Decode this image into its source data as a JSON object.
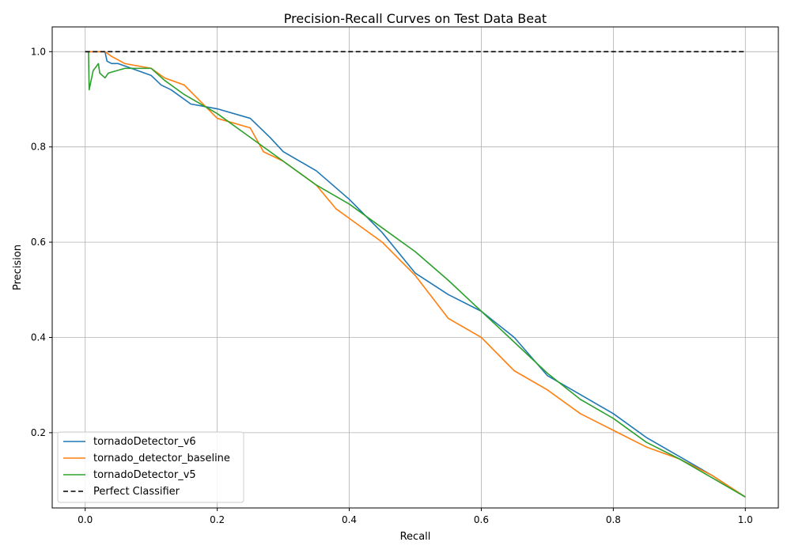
{
  "chart_data": {
    "type": "line",
    "title": "Precision-Recall Curves on Test Data Beat",
    "xlabel": "Recall",
    "ylabel": "Precision",
    "xlim": [
      -0.05,
      1.05
    ],
    "ylim": [
      0.042,
      1.052
    ],
    "xticks": [
      0.0,
      0.2,
      0.4,
      0.6,
      0.8,
      1.0
    ],
    "yticks": [
      0.2,
      0.4,
      0.6,
      0.8,
      1.0
    ],
    "xtick_labels": [
      "0.0",
      "0.2",
      "0.4",
      "0.6",
      "0.8",
      "1.0"
    ],
    "ytick_labels": [
      "0.2",
      "0.4",
      "0.6",
      "0.8",
      "1.0"
    ],
    "grid": true,
    "legend_position": "lower-left",
    "series": [
      {
        "name": "tornadoDetector_v6",
        "color": "#1f77b4",
        "dash": "solid",
        "x": [
          0.0,
          0.03,
          0.033,
          0.04,
          0.05,
          0.08,
          0.1,
          0.115,
          0.13,
          0.16,
          0.2,
          0.25,
          0.28,
          0.3,
          0.35,
          0.4,
          0.45,
          0.5,
          0.55,
          0.6,
          0.65,
          0.7,
          0.75,
          0.8,
          0.85,
          0.9,
          0.95,
          1.0
        ],
        "y": [
          1.0,
          1.0,
          0.98,
          0.975,
          0.975,
          0.96,
          0.95,
          0.93,
          0.92,
          0.89,
          0.88,
          0.86,
          0.82,
          0.79,
          0.75,
          0.69,
          0.62,
          0.535,
          0.49,
          0.455,
          0.4,
          0.32,
          0.28,
          0.24,
          0.19,
          0.15,
          0.11,
          0.065
        ]
      },
      {
        "name": "tornado_detector_baseline",
        "color": "#ff7f0e",
        "dash": "solid",
        "x": [
          0.0,
          0.03,
          0.04,
          0.06,
          0.08,
          0.1,
          0.12,
          0.15,
          0.2,
          0.25,
          0.27,
          0.3,
          0.35,
          0.38,
          0.4,
          0.45,
          0.5,
          0.55,
          0.6,
          0.65,
          0.7,
          0.75,
          0.8,
          0.85,
          0.9,
          0.95,
          1.0
        ],
        "y": [
          1.0,
          1.0,
          0.99,
          0.975,
          0.97,
          0.965,
          0.945,
          0.93,
          0.86,
          0.84,
          0.79,
          0.77,
          0.72,
          0.67,
          0.65,
          0.6,
          0.53,
          0.44,
          0.4,
          0.33,
          0.29,
          0.24,
          0.205,
          0.17,
          0.145,
          0.11,
          0.065
        ]
      },
      {
        "name": "tornadoDetector_v5",
        "color": "#2ca02c",
        "dash": "solid",
        "x": [
          0.0,
          0.005,
          0.006,
          0.012,
          0.02,
          0.022,
          0.03,
          0.035,
          0.06,
          0.1,
          0.12,
          0.15,
          0.2,
          0.25,
          0.3,
          0.35,
          0.4,
          0.45,
          0.5,
          0.55,
          0.6,
          0.65,
          0.7,
          0.75,
          0.8,
          0.85,
          0.9,
          0.95,
          1.0
        ],
        "y": [
          1.0,
          1.0,
          0.92,
          0.96,
          0.975,
          0.955,
          0.945,
          0.955,
          0.965,
          0.965,
          0.94,
          0.91,
          0.87,
          0.82,
          0.77,
          0.72,
          0.68,
          0.63,
          0.58,
          0.52,
          0.455,
          0.39,
          0.325,
          0.27,
          0.23,
          0.18,
          0.145,
          0.105,
          0.065
        ]
      },
      {
        "name": "Perfect Classifier",
        "color": "#000000",
        "dash": "dashed",
        "x": [
          0.0,
          1.0
        ],
        "y": [
          1.0,
          1.0
        ]
      }
    ]
  }
}
